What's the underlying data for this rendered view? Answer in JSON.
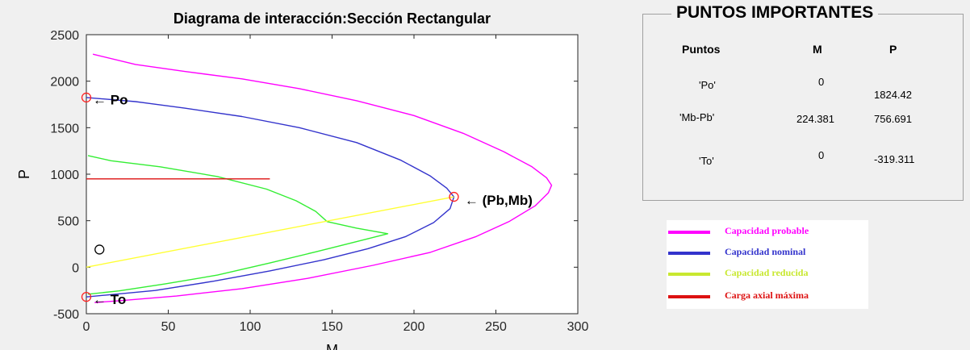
{
  "chart_data": {
    "type": "line",
    "title": "Diagrama de interacción:Sección Rectangular",
    "xlabel": "M",
    "ylabel": "P",
    "xlim": [
      0,
      300
    ],
    "ylim": [
      -500,
      2500
    ],
    "xticks": [
      "0",
      "50",
      "100",
      "150",
      "200",
      "250",
      "300"
    ],
    "yticks": [
      "-500",
      "0",
      "500",
      "1000",
      "1500",
      "2000",
      "2500"
    ],
    "series": [
      {
        "name": "Capacidad probable",
        "color": "#ff00ff",
        "x": [
          4,
          30,
          60,
          95,
          130,
          165,
          200,
          230,
          255,
          272,
          281,
          284,
          282,
          274,
          258,
          238,
          210,
          175,
          135,
          95,
          55,
          20,
          5
        ],
        "y": [
          2290,
          2180,
          2105,
          2025,
          1920,
          1790,
          1630,
          1440,
          1240,
          1080,
          960,
          880,
          800,
          660,
          490,
          330,
          160,
          20,
          -120,
          -230,
          -310,
          -360,
          -380
        ]
      },
      {
        "name": "Capacidad nominal",
        "color": "#3333cc",
        "x": [
          0,
          30,
          60,
          95,
          130,
          165,
          192,
          210,
          220,
          224.381,
          222,
          212,
          195,
          172,
          145,
          112,
          78,
          42,
          12,
          0
        ],
        "y": [
          1824.42,
          1780,
          1710,
          1620,
          1500,
          1340,
          1150,
          980,
          850,
          756.691,
          630,
          480,
          330,
          200,
          80,
          -40,
          -150,
          -250,
          -300,
          -319.311
        ]
      },
      {
        "name": "Capacidad reducida",
        "color": "#33ee33",
        "x": [
          1,
          15,
          45,
          80,
          110,
          128,
          140,
          147,
          165,
          184,
          165,
          140,
          112,
          80,
          48,
          20,
          1
        ],
        "y": [
          1200,
          1145,
          1080,
          975,
          840,
          715,
          600,
          490,
          420,
          360,
          275,
          165,
          45,
          -85,
          -180,
          -255,
          -290
        ]
      },
      {
        "name": "Carga axial máxima",
        "color": "#dd1111",
        "x": [
          0,
          112
        ],
        "y": [
          950,
          950
        ]
      },
      {
        "name": "",
        "color": "#ffff33",
        "x": [
          0,
          224.381
        ],
        "y": [
          0,
          756.691
        ]
      }
    ],
    "markers": [
      {
        "x": 0,
        "y": 1824.42,
        "color": "#ff2222"
      },
      {
        "x": 224.381,
        "y": 756.691,
        "color": "#ff2222"
      },
      {
        "x": 0,
        "y": -319.311,
        "color": "#ff2222"
      },
      {
        "x": 8,
        "y": 190,
        "color": "#000000"
      }
    ],
    "annotations": [
      {
        "text": "← Po",
        "x": 2,
        "y": 1810
      },
      {
        "text": "← (Pb,Mb)",
        "x": 229,
        "y": 730
      },
      {
        "text": "← To",
        "x": 2,
        "y": -335
      }
    ],
    "grid": false
  },
  "panel": {
    "title": "PUNTOS IMPORTANTES",
    "headers": [
      "Puntos",
      "M",
      "P"
    ],
    "rows": [
      {
        "label": "'Po'",
        "m": "0",
        "p": "1824.42"
      },
      {
        "label": "'Mb-Pb'",
        "m": "224.381",
        "p": "756.691"
      },
      {
        "label": "'To'",
        "m": "0",
        "p": "-319.311"
      }
    ]
  },
  "legend": [
    {
      "label": "Capacidad probable",
      "color": "#ff00ff",
      "text_color": "#ff00ff"
    },
    {
      "label": "Capacidad nominal",
      "color": "#3333cc",
      "text_color": "#3333cc"
    },
    {
      "label": "Capacidad reducida",
      "color": "#c8e830",
      "text_color": "#c8e830"
    },
    {
      "label": "Carga axial máxima",
      "color": "#dd1111",
      "text_color": "#dd1111"
    }
  ]
}
